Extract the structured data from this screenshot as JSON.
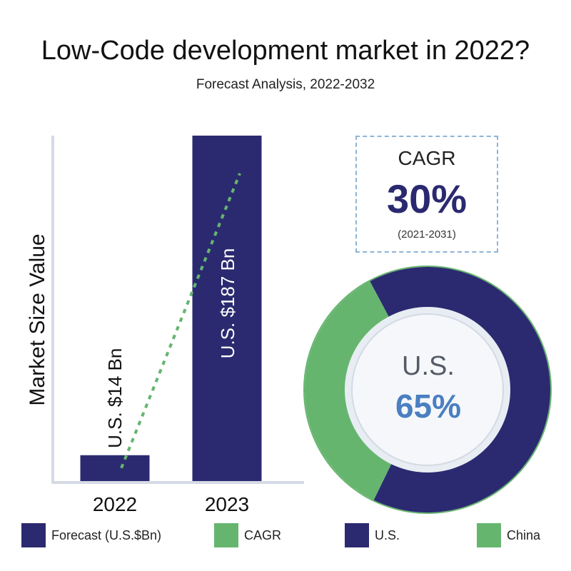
{
  "title": "Low-Code development market in 2022?",
  "subtitle": "Forecast Analysis, 2022-2032",
  "colors": {
    "navy": "#2b2a70",
    "green": "#66b56f",
    "blue_text": "#4a7fc1",
    "axis": "#d4dbe5"
  },
  "chart_data": [
    {
      "type": "bar",
      "ylabel": "Market Size Value",
      "categories": [
        "2022",
        "2023"
      ],
      "values": [
        14,
        187
      ],
      "bar_labels": [
        "U.S. $14 Bn",
        "U.S. $187 Bn"
      ],
      "trend_line": true
    },
    {
      "type": "pie",
      "style": "donut",
      "slices": [
        {
          "label": "U.S.",
          "value": 65
        },
        {
          "label": "China",
          "value": 35
        }
      ],
      "center_label": "U.S.",
      "center_value": "65%"
    }
  ],
  "cagr": {
    "label": "CAGR",
    "value": "30%",
    "period": "(2021-2031)"
  },
  "legend": [
    {
      "label": "Forecast (U.S.$Bn)",
      "color": "#2b2a70"
    },
    {
      "label": "CAGR",
      "color": "#66b56f"
    },
    {
      "label": "U.S.",
      "color": "#2b2a70"
    },
    {
      "label": "China",
      "color": "#66b56f"
    }
  ]
}
